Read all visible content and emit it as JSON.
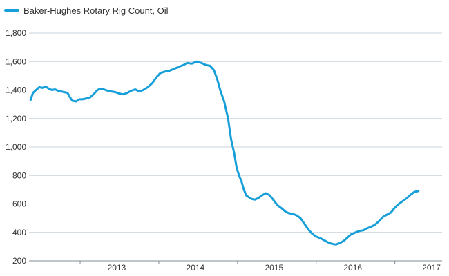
{
  "colors": {
    "series": "#169fd9",
    "grid": "#c9d3db",
    "axis": "#7f8c96",
    "text": "#333333"
  },
  "chart_data": {
    "type": "line",
    "title": "",
    "xlabel": "",
    "ylabel": "",
    "ylim": [
      200,
      1800
    ],
    "xlim": [
      2012.35,
      2017.6
    ],
    "y_ticks": [
      200,
      400,
      600,
      800,
      1000,
      1200,
      1400,
      1600,
      1800
    ],
    "y_tick_labels": [
      "200",
      "400",
      "600",
      "800",
      "1,000",
      "1,200",
      "1,400",
      "1,600",
      "1,800"
    ],
    "x_ticks": [
      2013,
      2014,
      2015,
      2016,
      2017
    ],
    "x_tick_labels": [
      "2013",
      "2014",
      "2015",
      "2016",
      "2017"
    ],
    "grid": "horizontal",
    "legend_position": "top-left",
    "series": [
      {
        "name": "Baker-Hughes Rotary Rig Count, Oil",
        "x": [
          2012.37,
          2012.4,
          2012.43,
          2012.48,
          2012.52,
          2012.56,
          2012.6,
          2012.64,
          2012.68,
          2012.72,
          2012.76,
          2012.8,
          2012.84,
          2012.87,
          2012.9,
          2012.95,
          2012.99,
          2013.03,
          2013.07,
          2013.12,
          2013.17,
          2013.22,
          2013.26,
          2013.3,
          2013.35,
          2013.4,
          2013.45,
          2013.5,
          2013.55,
          2013.6,
          2013.65,
          2013.7,
          2013.75,
          2013.8,
          2013.86,
          2013.92,
          2013.97,
          2014.02,
          2014.08,
          2014.13,
          2014.2,
          2014.26,
          2014.31,
          2014.36,
          2014.42,
          2014.48,
          2014.54,
          2014.6,
          2014.65,
          2014.7,
          2014.74,
          2014.78,
          2014.83,
          2014.88,
          2014.92,
          2014.96,
          2014.99,
          2015.02,
          2015.05,
          2015.08,
          2015.11,
          2015.15,
          2015.18,
          2015.22,
          2015.26,
          2015.31,
          2015.36,
          2015.41,
          2015.46,
          2015.51,
          2015.56,
          2015.61,
          2015.65,
          2015.7,
          2015.75,
          2015.8,
          2015.85,
          2015.9,
          2015.95,
          2016.0,
          2016.05,
          2016.1,
          2016.15,
          2016.2,
          2016.25,
          2016.3,
          2016.35,
          2016.4,
          2016.44,
          2016.5,
          2016.55,
          2016.6,
          2016.65,
          2016.7,
          2016.75,
          2016.8,
          2016.85,
          2016.9,
          2016.95,
          2017.0,
          2017.05,
          2017.1,
          2017.15,
          2017.2,
          2017.25,
          2017.3
        ],
        "values": [
          1330,
          1380,
          1395,
          1420,
          1415,
          1425,
          1410,
          1400,
          1405,
          1395,
          1390,
          1385,
          1380,
          1350,
          1325,
          1320,
          1335,
          1335,
          1340,
          1345,
          1370,
          1400,
          1410,
          1405,
          1395,
          1390,
          1385,
          1375,
          1370,
          1380,
          1395,
          1405,
          1390,
          1400,
          1420,
          1450,
          1490,
          1520,
          1530,
          1535,
          1550,
          1565,
          1575,
          1590,
          1585,
          1600,
          1590,
          1575,
          1570,
          1540,
          1480,
          1400,
          1320,
          1200,
          1050,
          950,
          850,
          800,
          760,
          700,
          660,
          645,
          635,
          630,
          640,
          660,
          675,
          660,
          625,
          590,
          570,
          545,
          535,
          530,
          520,
          500,
          460,
          420,
          390,
          370,
          360,
          345,
          330,
          320,
          315,
          325,
          340,
          365,
          385,
          400,
          410,
          415,
          430,
          440,
          455,
          480,
          510,
          525,
          540,
          575,
          600,
          620,
          640,
          665,
          685,
          690
        ]
      }
    ]
  }
}
